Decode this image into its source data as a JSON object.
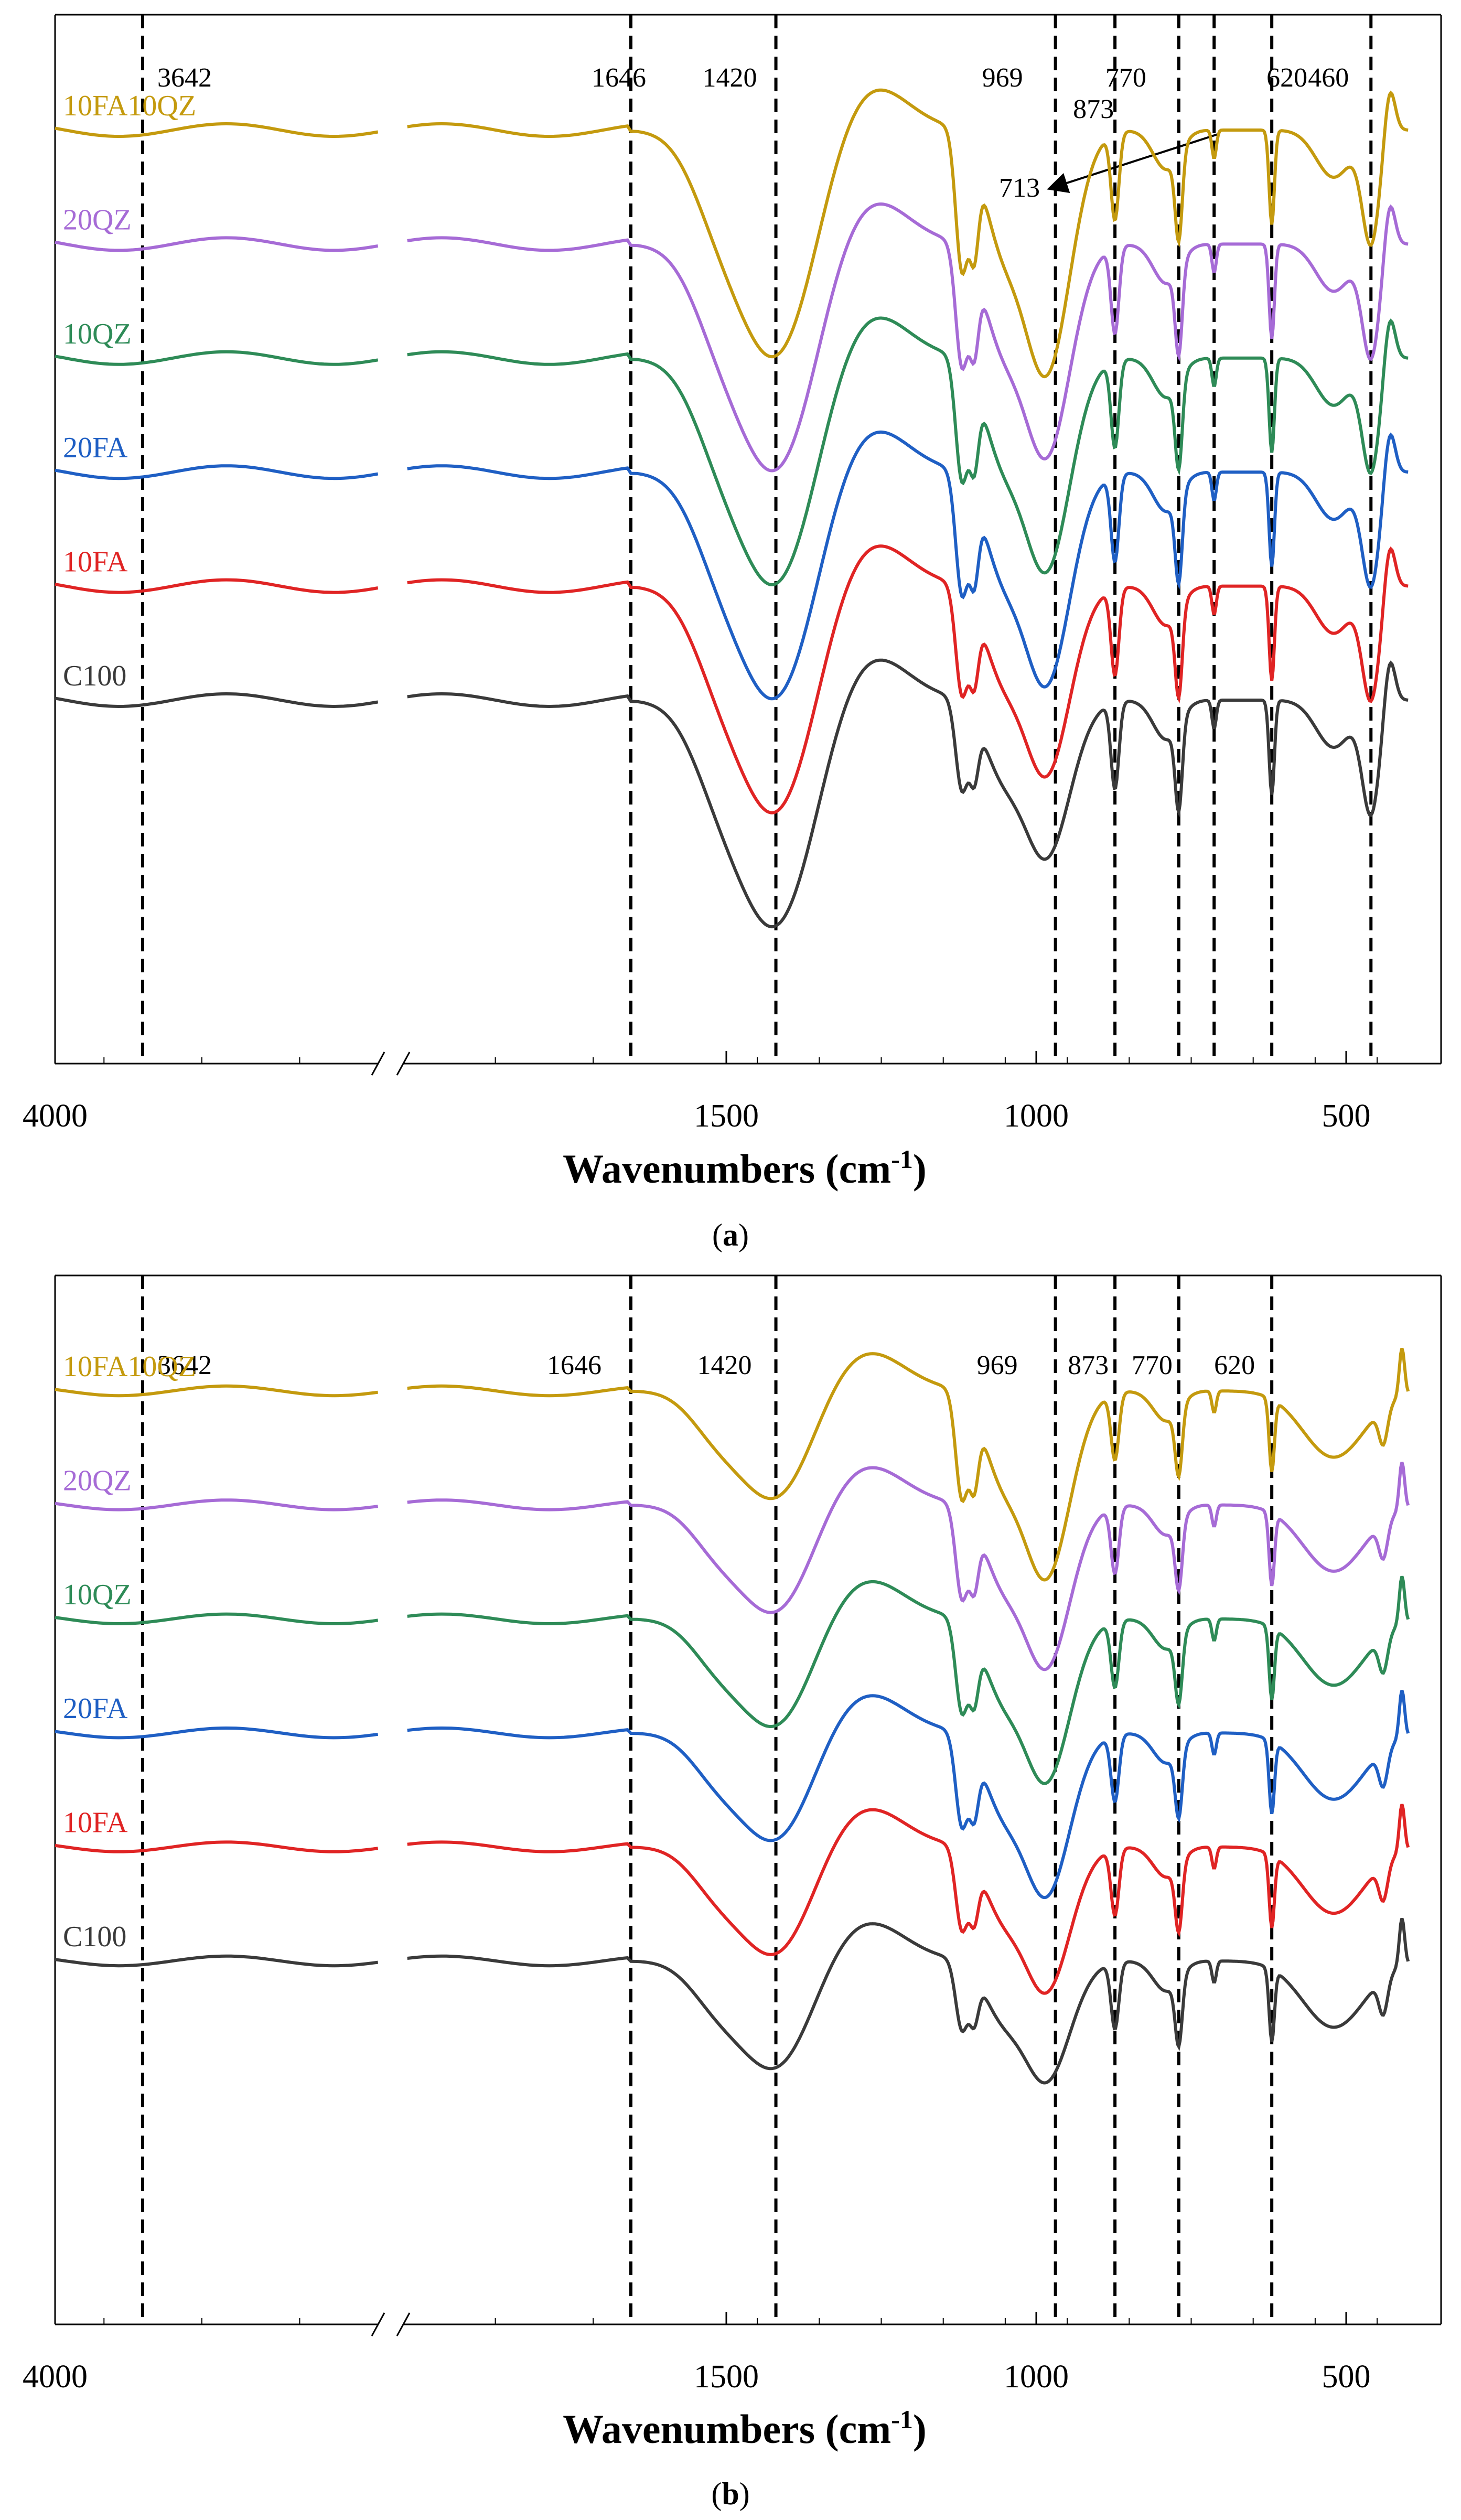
{
  "chart_data": [
    {
      "type": "line",
      "caption": "a",
      "xlabel": "Wavenumbers (cm",
      "xlabel_sup": "-1",
      "xlabel_close": ")",
      "xlim": [
        4000,
        400
      ],
      "axis_break": "between 4000 and 1646",
      "x_ticks": [
        {
          "label": "4000",
          "value": 4000
        },
        {
          "label": "1500",
          "value": 1500
        },
        {
          "label": "1000",
          "value": 1000
        },
        {
          "label": "500",
          "value": 500
        }
      ],
      "reference_lines": [
        {
          "value": 3642,
          "label": "3642"
        },
        {
          "value": 1646,
          "label": "1646"
        },
        {
          "value": 1420,
          "label": "1420"
        },
        {
          "value": 969,
          "label": "969"
        },
        {
          "value": 873,
          "label": "873"
        },
        {
          "value": 770,
          "label": "770"
        },
        {
          "value": 713,
          "label": "713"
        },
        {
          "value": 620,
          "label": "620"
        },
        {
          "value": 460,
          "label": "460"
        }
      ],
      "annotation": {
        "label": "713",
        "points_to": 713
      },
      "series": [
        {
          "name": "10FA10QZ",
          "color": "#c49a0e",
          "offset": 5
        },
        {
          "name": "20QZ",
          "color": "#a66bd6",
          "offset": 4
        },
        {
          "name": "10QZ",
          "color": "#2e8b57",
          "offset": 3
        },
        {
          "name": "20FA",
          "color": "#1f5fc4",
          "offset": 2
        },
        {
          "name": "10FA",
          "color": "#e02424",
          "offset": 1
        },
        {
          "name": "C100",
          "color": "#3a3a3a",
          "offset": 0
        }
      ]
    },
    {
      "type": "line",
      "caption": "b",
      "xlabel": "Wavenumbers (cm",
      "xlabel_sup": "-1",
      "xlabel_close": ")",
      "xlim": [
        4000,
        400
      ],
      "axis_break": "between 4000 and 1646",
      "x_ticks": [
        {
          "label": "4000",
          "value": 4000
        },
        {
          "label": "1500",
          "value": 1500
        },
        {
          "label": "1000",
          "value": 1000
        },
        {
          "label": "500",
          "value": 500
        }
      ],
      "reference_lines": [
        {
          "value": 3642,
          "label": "3642"
        },
        {
          "value": 1646,
          "label": "1646"
        },
        {
          "value": 1420,
          "label": "1420"
        },
        {
          "value": 969,
          "label": "969"
        },
        {
          "value": 873,
          "label": "873"
        },
        {
          "value": 770,
          "label": "770"
        },
        {
          "value": 620,
          "label": "620"
        }
      ],
      "series": [
        {
          "name": "10FA10QZ",
          "color": "#c49a0e",
          "offset": 5
        },
        {
          "name": "20QZ",
          "color": "#a66bd6",
          "offset": 4
        },
        {
          "name": "10QZ",
          "color": "#2e8b57",
          "offset": 3
        },
        {
          "name": "20FA",
          "color": "#1f5fc4",
          "offset": 2
        },
        {
          "name": "10FA",
          "color": "#e02424",
          "offset": 1
        },
        {
          "name": "C100",
          "color": "#3a3a3a",
          "offset": 0
        }
      ]
    }
  ]
}
